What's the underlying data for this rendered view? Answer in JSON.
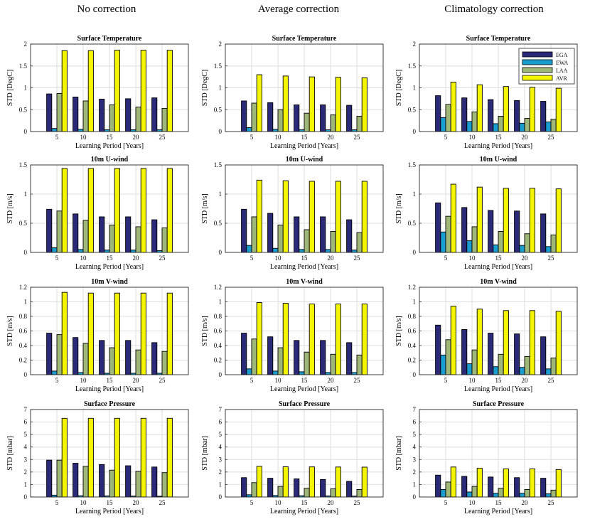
{
  "column_titles": [
    "No correction",
    "Average correction",
    "Climatology correction"
  ],
  "colors": {
    "EGA": "#2b2a78",
    "EWA": "#1a9ccf",
    "LAA": "#9fb779",
    "AVR": "#f5f500"
  },
  "legend_labels": [
    "EGA",
    "EWA",
    "LAA",
    "AVR"
  ],
  "chart_data": [
    {
      "id": "nc-temp",
      "type": "bar",
      "title": "Surface Temperature",
      "ylabel": "STD [DegC]",
      "xlabel": "Learning Period [Years]",
      "categories": [
        "5",
        "10",
        "15",
        "20",
        "25"
      ],
      "ylim": [
        0,
        2
      ],
      "yticks": [
        "0",
        "0.5",
        "1",
        "1.5",
        "2"
      ],
      "grid": true,
      "series": [
        {
          "name": "EGA",
          "values": [
            0.86,
            0.79,
            0.74,
            0.75,
            0.77
          ]
        },
        {
          "name": "EWA",
          "values": [
            0.07,
            0.05,
            0.04,
            0.04,
            0.04
          ]
        },
        {
          "name": "LAA",
          "values": [
            0.87,
            0.7,
            0.61,
            0.56,
            0.53
          ]
        },
        {
          "name": "AVR",
          "values": [
            1.85,
            1.85,
            1.86,
            1.86,
            1.86
          ]
        }
      ]
    },
    {
      "id": "ac-temp",
      "type": "bar",
      "title": "Surface Temperature",
      "ylabel": "STD [DegC]",
      "xlabel": "Learning Period [Years]",
      "categories": [
        "5",
        "10",
        "15",
        "20",
        "25"
      ],
      "ylim": [
        0,
        2
      ],
      "yticks": [
        "0",
        "0.5",
        "1",
        "1.5",
        "2"
      ],
      "grid": true,
      "series": [
        {
          "name": "EGA",
          "values": [
            0.7,
            0.66,
            0.61,
            0.61,
            0.6
          ]
        },
        {
          "name": "EWA",
          "values": [
            0.09,
            0.05,
            0.04,
            0.04,
            0.04
          ]
        },
        {
          "name": "LAA",
          "values": [
            0.65,
            0.5,
            0.42,
            0.38,
            0.35
          ]
        },
        {
          "name": "AVR",
          "values": [
            1.3,
            1.27,
            1.25,
            1.24,
            1.23
          ]
        }
      ]
    },
    {
      "id": "cc-temp",
      "type": "bar",
      "title": "Surface Temperature",
      "ylabel": "STD [DegC]",
      "xlabel": "Learning Period [Years]",
      "categories": [
        "5",
        "10",
        "15",
        "20",
        "25"
      ],
      "ylim": [
        0,
        2
      ],
      "yticks": [
        "0",
        "0.5",
        "1",
        "1.5",
        "2"
      ],
      "grid": true,
      "legend": "top-right",
      "series": [
        {
          "name": "EGA",
          "values": [
            0.82,
            0.77,
            0.73,
            0.71,
            0.69
          ]
        },
        {
          "name": "EWA",
          "values": [
            0.32,
            0.23,
            0.18,
            0.19,
            0.22
          ]
        },
        {
          "name": "LAA",
          "values": [
            0.62,
            0.45,
            0.35,
            0.3,
            0.28
          ]
        },
        {
          "name": "AVR",
          "values": [
            1.13,
            1.07,
            1.03,
            1.01,
            0.99
          ]
        }
      ]
    },
    {
      "id": "nc-u",
      "type": "bar",
      "title": "10m U-wind",
      "ylabel": "STD [m/s]",
      "xlabel": "Learning Period [Years]",
      "categories": [
        "5",
        "10",
        "15",
        "20",
        "25"
      ],
      "ylim": [
        0,
        1.5
      ],
      "yticks": [
        "0",
        "0.5",
        "1",
        "1.5"
      ],
      "grid": true,
      "series": [
        {
          "name": "EGA",
          "values": [
            0.74,
            0.66,
            0.61,
            0.61,
            0.56
          ]
        },
        {
          "name": "EWA",
          "values": [
            0.08,
            0.05,
            0.04,
            0.04,
            0.03
          ]
        },
        {
          "name": "LAA",
          "values": [
            0.71,
            0.55,
            0.47,
            0.44,
            0.42
          ]
        },
        {
          "name": "AVR",
          "values": [
            1.44,
            1.44,
            1.44,
            1.44,
            1.44
          ]
        }
      ]
    },
    {
      "id": "ac-u",
      "type": "bar",
      "title": "10m U-wind",
      "ylabel": "STD [m/s]",
      "xlabel": "Learning Period [Years]",
      "categories": [
        "5",
        "10",
        "15",
        "20",
        "25"
      ],
      "ylim": [
        0,
        1.5
      ],
      "yticks": [
        "0",
        "0.5",
        "1",
        "1.5"
      ],
      "grid": true,
      "series": [
        {
          "name": "EGA",
          "values": [
            0.74,
            0.67,
            0.61,
            0.61,
            0.56
          ]
        },
        {
          "name": "EWA",
          "values": [
            0.12,
            0.07,
            0.05,
            0.05,
            0.04
          ]
        },
        {
          "name": "LAA",
          "values": [
            0.61,
            0.47,
            0.39,
            0.36,
            0.34
          ]
        },
        {
          "name": "AVR",
          "values": [
            1.24,
            1.23,
            1.22,
            1.22,
            1.22
          ]
        }
      ]
    },
    {
      "id": "cc-u",
      "type": "bar",
      "title": "10m U-wind",
      "ylabel": "STD [m/s]",
      "xlabel": "Learning Period [Years]",
      "categories": [
        "5",
        "10",
        "15",
        "20",
        "25"
      ],
      "ylim": [
        0,
        1.5
      ],
      "yticks": [
        "0",
        "0.5",
        "1",
        "1.5"
      ],
      "grid": true,
      "series": [
        {
          "name": "EGA",
          "values": [
            0.85,
            0.77,
            0.72,
            0.71,
            0.66
          ]
        },
        {
          "name": "EWA",
          "values": [
            0.35,
            0.2,
            0.13,
            0.12,
            0.1
          ]
        },
        {
          "name": "LAA",
          "values": [
            0.62,
            0.44,
            0.36,
            0.32,
            0.3
          ]
        },
        {
          "name": "AVR",
          "values": [
            1.17,
            1.12,
            1.1,
            1.1,
            1.09
          ]
        }
      ]
    },
    {
      "id": "nc-v",
      "type": "bar",
      "title": "10m V-wind",
      "ylabel": "STD [m/s]",
      "xlabel": "Learning Period [Years]",
      "categories": [
        "5",
        "10",
        "15",
        "20",
        "25"
      ],
      "ylim": [
        0,
        1.2
      ],
      "yticks": [
        "0",
        "0.2",
        "0.4",
        "0.6",
        "0.8",
        "1",
        "1.2"
      ],
      "grid": true,
      "series": [
        {
          "name": "EGA",
          "values": [
            0.57,
            0.51,
            0.47,
            0.47,
            0.44
          ]
        },
        {
          "name": "EWA",
          "values": [
            0.05,
            0.03,
            0.02,
            0.02,
            0.02
          ]
        },
        {
          "name": "LAA",
          "values": [
            0.55,
            0.43,
            0.37,
            0.34,
            0.32
          ]
        },
        {
          "name": "AVR",
          "values": [
            1.13,
            1.12,
            1.12,
            1.12,
            1.12
          ]
        }
      ]
    },
    {
      "id": "ac-v",
      "type": "bar",
      "title": "10m V-wind",
      "ylabel": "STD [m/s]",
      "xlabel": "Learning Period [Years]",
      "categories": [
        "5",
        "10",
        "15",
        "20",
        "25"
      ],
      "ylim": [
        0,
        1.2
      ],
      "yticks": [
        "0",
        "0.2",
        "0.4",
        "0.6",
        "0.8",
        "1",
        "1.2"
      ],
      "grid": true,
      "series": [
        {
          "name": "EGA",
          "values": [
            0.57,
            0.52,
            0.47,
            0.47,
            0.44
          ]
        },
        {
          "name": "EWA",
          "values": [
            0.08,
            0.05,
            0.04,
            0.03,
            0.03
          ]
        },
        {
          "name": "LAA",
          "values": [
            0.49,
            0.37,
            0.31,
            0.28,
            0.27
          ]
        },
        {
          "name": "AVR",
          "values": [
            0.99,
            0.98,
            0.97,
            0.97,
            0.97
          ]
        }
      ]
    },
    {
      "id": "cc-v",
      "type": "bar",
      "title": "10m V-wind",
      "ylabel": "STD [m/s]",
      "xlabel": "Learning Period [Years]",
      "categories": [
        "5",
        "10",
        "15",
        "20",
        "25"
      ],
      "ylim": [
        0,
        1.2
      ],
      "yticks": [
        "0",
        "0.2",
        "0.4",
        "0.6",
        "0.8",
        "1",
        "1.2"
      ],
      "grid": true,
      "series": [
        {
          "name": "EGA",
          "values": [
            0.68,
            0.62,
            0.57,
            0.56,
            0.52
          ]
        },
        {
          "name": "EWA",
          "values": [
            0.27,
            0.15,
            0.11,
            0.1,
            0.08
          ]
        },
        {
          "name": "LAA",
          "values": [
            0.48,
            0.34,
            0.28,
            0.25,
            0.23
          ]
        },
        {
          "name": "AVR",
          "values": [
            0.94,
            0.9,
            0.88,
            0.88,
            0.87
          ]
        }
      ]
    },
    {
      "id": "nc-p",
      "type": "bar",
      "title": "Surface Pressure",
      "ylabel": "STD [mbar]",
      "xlabel": "Learning Period [Years]",
      "categories": [
        "5",
        "10",
        "15",
        "20",
        "25"
      ],
      "ylim": [
        0,
        7
      ],
      "yticks": [
        "0",
        "1",
        "2",
        "3",
        "4",
        "5",
        "6",
        "7"
      ],
      "grid": true,
      "series": [
        {
          "name": "EGA",
          "values": [
            2.95,
            2.7,
            2.6,
            2.5,
            2.4
          ]
        },
        {
          "name": "EWA",
          "values": [
            0.15,
            0.1,
            0.08,
            0.07,
            0.06
          ]
        },
        {
          "name": "LAA",
          "values": [
            2.95,
            2.45,
            2.15,
            2.05,
            1.95
          ]
        },
        {
          "name": "AVR",
          "values": [
            6.3,
            6.3,
            6.3,
            6.3,
            6.3
          ]
        }
      ]
    },
    {
      "id": "ac-p",
      "type": "bar",
      "title": "Surface Pressure",
      "ylabel": "STD [mbar]",
      "xlabel": "Learning Period [Years]",
      "categories": [
        "5",
        "10",
        "15",
        "20",
        "25"
      ],
      "ylim": [
        0,
        7
      ],
      "yticks": [
        "0",
        "1",
        "2",
        "3",
        "4",
        "5",
        "6",
        "7"
      ],
      "grid": true,
      "series": [
        {
          "name": "EGA",
          "values": [
            1.55,
            1.5,
            1.45,
            1.4,
            1.25
          ]
        },
        {
          "name": "EWA",
          "values": [
            0.18,
            0.12,
            0.1,
            0.08,
            0.07
          ]
        },
        {
          "name": "LAA",
          "values": [
            1.15,
            0.85,
            0.7,
            0.65,
            0.6
          ]
        },
        {
          "name": "AVR",
          "values": [
            2.45,
            2.42,
            2.41,
            2.4,
            2.39
          ]
        }
      ]
    },
    {
      "id": "cc-p",
      "type": "bar",
      "title": "Surface Pressure",
      "ylabel": "STD [mbar]",
      "xlabel": "Learning Period [Years]",
      "categories": [
        "5",
        "10",
        "15",
        "20",
        "25"
      ],
      "ylim": [
        0,
        7
      ],
      "yticks": [
        "0",
        "1",
        "2",
        "3",
        "4",
        "5",
        "6",
        "7"
      ],
      "grid": true,
      "series": [
        {
          "name": "EGA",
          "values": [
            1.75,
            1.65,
            1.6,
            1.55,
            1.5
          ]
        },
        {
          "name": "EWA",
          "values": [
            0.6,
            0.4,
            0.3,
            0.3,
            0.25
          ]
        },
        {
          "name": "LAA",
          "values": [
            1.2,
            0.85,
            0.7,
            0.6,
            0.55
          ]
        },
        {
          "name": "AVR",
          "values": [
            2.4,
            2.3,
            2.25,
            2.25,
            2.2
          ]
        }
      ]
    }
  ]
}
